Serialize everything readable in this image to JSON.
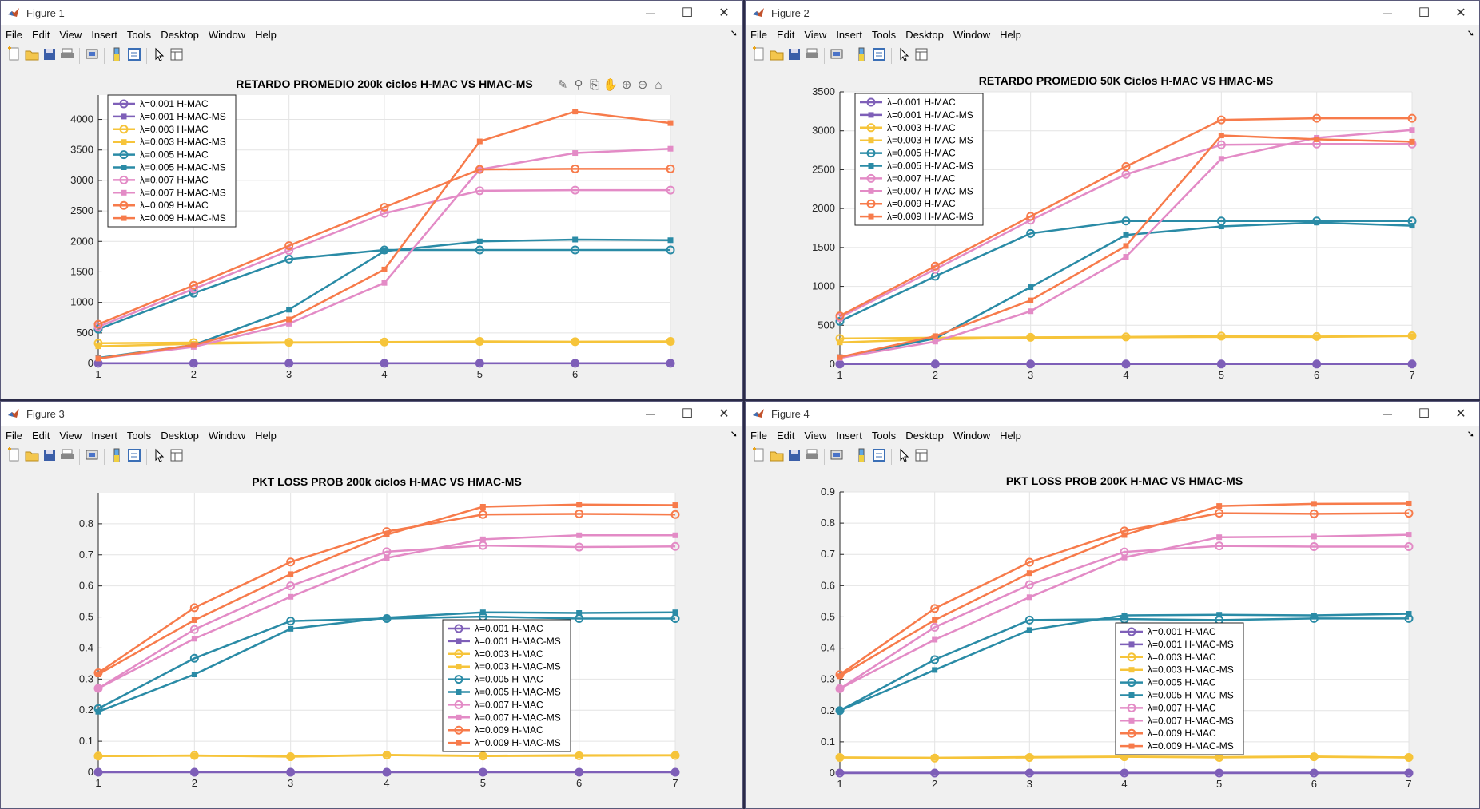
{
  "desktop": {
    "menu": [
      "File",
      "Edit",
      "View",
      "Insert",
      "Tools",
      "Desktop",
      "Window",
      "Help"
    ],
    "window_controls": [
      "minimize",
      "maximize",
      "close"
    ]
  },
  "colors": {
    "l001": "#7e5fb8",
    "l003": "#f6c43a",
    "l005": "#2a8ba6",
    "l007": "#e38bc6",
    "l009": "#f77b4b"
  },
  "windows": [
    {
      "title": "Figure 1",
      "chart_data": {
        "type": "line",
        "title": "RETARDO PROMEDIO 200k ciclos H-MAC  VS  HMAC-MS",
        "x": [
          1,
          2,
          3,
          4,
          5,
          6,
          7
        ],
        "xlim": [
          1,
          7
        ],
        "ylim": [
          0,
          4400
        ],
        "yticks": [
          0,
          500,
          1000,
          1500,
          2000,
          2500,
          3000,
          3500,
          4000
        ],
        "xticks": [
          1,
          2,
          3,
          4,
          5,
          6
        ],
        "grid": true,
        "legend_position": "top-left",
        "series": [
          {
            "name": "λ=0.001 H-MAC",
            "color": "l001",
            "marker": "o",
            "values": [
              2,
              2,
              2,
              2,
              2,
              2,
              2
            ]
          },
          {
            "name": "λ=0.001 H-MAC-MS",
            "color": "l001",
            "marker": "s",
            "values": [
              4,
              4,
              4,
              4,
              4,
              4,
              4
            ]
          },
          {
            "name": "λ=0.003 H-MAC",
            "color": "l003",
            "marker": "o",
            "values": [
              330,
              340,
              345,
              350,
              360,
              355,
              360
            ]
          },
          {
            "name": "λ=0.003 H-MAC-MS",
            "color": "l003",
            "marker": "s",
            "values": [
              280,
              320,
              340,
              345,
              350,
              350,
              355
            ]
          },
          {
            "name": "λ=0.005 H-MAC",
            "color": "l005",
            "marker": "o",
            "values": [
              560,
              1150,
              1710,
              1860,
              1860,
              1860,
              1860
            ]
          },
          {
            "name": "λ=0.005 H-MAC-MS",
            "color": "l005",
            "marker": "s",
            "values": [
              90,
              300,
              880,
              1840,
              2000,
              2030,
              2020
            ]
          },
          {
            "name": "λ=0.007 H-MAC",
            "color": "l007",
            "marker": "o",
            "values": [
              600,
              1220,
              1850,
              2460,
              2830,
              2840,
              2840
            ]
          },
          {
            "name": "λ=0.007 H-MAC-MS",
            "color": "l007",
            "marker": "s",
            "values": [
              80,
              270,
              650,
              1320,
              3180,
              3450,
              3520
            ]
          },
          {
            "name": "λ=0.009 H-MAC",
            "color": "l009",
            "marker": "o",
            "values": [
              640,
              1280,
              1930,
              2560,
              3180,
              3190,
              3190
            ]
          },
          {
            "name": "λ=0.009 H-MAC-MS",
            "color": "l009",
            "marker": "s",
            "values": [
              80,
              300,
              720,
              1540,
              3640,
              4130,
              3940
            ]
          }
        ]
      }
    },
    {
      "title": "Figure 2",
      "chart_data": {
        "type": "line",
        "title": "RETARDO PROMEDIO 50K Ciclos H-MAC  VS  HMAC-MS",
        "x": [
          1,
          2,
          3,
          4,
          5,
          6,
          7
        ],
        "xlim": [
          1,
          7
        ],
        "ylim": [
          0,
          3500
        ],
        "yticks": [
          0,
          500,
          1000,
          1500,
          2000,
          2500,
          3000,
          3500
        ],
        "xticks": [
          1,
          2,
          3,
          4,
          5,
          6,
          7
        ],
        "grid": true,
        "legend_position": "top-left",
        "series": [
          {
            "name": "λ=0.001 H-MAC",
            "color": "l001",
            "marker": "o",
            "values": [
              2,
              2,
              2,
              2,
              2,
              2,
              2
            ]
          },
          {
            "name": "λ=0.001 H-MAC-MS",
            "color": "l001",
            "marker": "s",
            "values": [
              4,
              4,
              4,
              4,
              4,
              4,
              4
            ]
          },
          {
            "name": "λ=0.003 H-MAC",
            "color": "l003",
            "marker": "o",
            "values": [
              330,
              340,
              345,
              350,
              360,
              355,
              365
            ]
          },
          {
            "name": "λ=0.003 H-MAC-MS",
            "color": "l003",
            "marker": "s",
            "values": [
              280,
              320,
              340,
              345,
              350,
              350,
              360
            ]
          },
          {
            "name": "λ=0.005 H-MAC",
            "color": "l005",
            "marker": "o",
            "values": [
              550,
              1130,
              1680,
              1840,
              1840,
              1840,
              1840
            ]
          },
          {
            "name": "λ=0.005 H-MAC-MS",
            "color": "l005",
            "marker": "s",
            "values": [
              90,
              330,
              990,
              1660,
              1770,
              1820,
              1780
            ]
          },
          {
            "name": "λ=0.007 H-MAC",
            "color": "l007",
            "marker": "o",
            "values": [
              600,
              1220,
              1850,
              2440,
              2820,
              2830,
              2830
            ]
          },
          {
            "name": "λ=0.007 H-MAC-MS",
            "color": "l007",
            "marker": "s",
            "values": [
              80,
              290,
              680,
              1380,
              2640,
              2910,
              3010
            ]
          },
          {
            "name": "λ=0.009 H-MAC",
            "color": "l009",
            "marker": "o",
            "values": [
              620,
              1260,
              1900,
              2540,
              3140,
              3160,
              3160
            ]
          },
          {
            "name": "λ=0.009 H-MAC-MS",
            "color": "l009",
            "marker": "s",
            "values": [
              90,
              360,
              820,
              1520,
              2940,
              2890,
              2860
            ]
          }
        ]
      }
    },
    {
      "title": "Figure 3",
      "chart_data": {
        "type": "line",
        "title": "PKT LOSS PROB 200k ciclos H-MAC  VS  HMAC-MS",
        "x": [
          1,
          2,
          3,
          4,
          5,
          6,
          7
        ],
        "xlim": [
          1,
          7
        ],
        "ylim": [
          0,
          0.9
        ],
        "yticks": [
          0,
          0.1,
          0.2,
          0.3,
          0.4,
          0.5,
          0.6,
          0.7,
          0.8
        ],
        "xticks": [
          1,
          2,
          3,
          4,
          5,
          6,
          7
        ],
        "grid": true,
        "legend_position": "center-right",
        "series": [
          {
            "name": "λ=0.001 H-MAC",
            "color": "l001",
            "marker": "o",
            "values": [
              0,
              0,
              0,
              0,
              0,
              0,
              0
            ]
          },
          {
            "name": "λ=0.001 H-MAC-MS",
            "color": "l001",
            "marker": "s",
            "values": [
              0.001,
              0.001,
              0.001,
              0.001,
              0.001,
              0.001,
              0.001
            ]
          },
          {
            "name": "λ=0.003 H-MAC",
            "color": "l003",
            "marker": "o",
            "values": [
              0.052,
              0.054,
              0.05,
              0.055,
              0.052,
              0.053,
              0.054
            ]
          },
          {
            "name": "λ=0.003 H-MAC-MS",
            "color": "l003",
            "marker": "s",
            "values": [
              0.052,
              0.053,
              0.051,
              0.056,
              0.053,
              0.055,
              0.055
            ]
          },
          {
            "name": "λ=0.005 H-MAC",
            "color": "l005",
            "marker": "o",
            "values": [
              0.205,
              0.367,
              0.487,
              0.495,
              0.501,
              0.495,
              0.495
            ]
          },
          {
            "name": "λ=0.005 H-MAC-MS",
            "color": "l005",
            "marker": "s",
            "values": [
              0.195,
              0.315,
              0.462,
              0.498,
              0.515,
              0.513,
              0.515
            ]
          },
          {
            "name": "λ=0.007 H-MAC",
            "color": "l007",
            "marker": "o",
            "values": [
              0.27,
              0.46,
              0.6,
              0.71,
              0.73,
              0.725,
              0.727
            ]
          },
          {
            "name": "λ=0.007 H-MAC-MS",
            "color": "l007",
            "marker": "s",
            "values": [
              0.27,
              0.43,
              0.565,
              0.69,
              0.75,
              0.763,
              0.763
            ]
          },
          {
            "name": "λ=0.009 H-MAC",
            "color": "l009",
            "marker": "o",
            "values": [
              0.32,
              0.53,
              0.677,
              0.775,
              0.83,
              0.832,
              0.83
            ]
          },
          {
            "name": "λ=0.009 H-MAC-MS",
            "color": "l009",
            "marker": "s",
            "values": [
              0.315,
              0.49,
              0.638,
              0.765,
              0.855,
              0.862,
              0.86
            ]
          }
        ]
      }
    },
    {
      "title": "Figure 4",
      "chart_data": {
        "type": "line",
        "title": "PKT LOSS PROB 200K H-MAC  VS  HMAC-MS",
        "x": [
          1,
          2,
          3,
          4,
          5,
          6,
          7
        ],
        "xlim": [
          1,
          7
        ],
        "ylim": [
          0,
          0.9
        ],
        "yticks": [
          0,
          0.1,
          0.2,
          0.3,
          0.4,
          0.5,
          0.6,
          0.7,
          0.8,
          0.9
        ],
        "xticks": [
          1,
          2,
          3,
          4,
          5,
          6,
          7
        ],
        "grid": true,
        "legend_position": "center-right",
        "series": [
          {
            "name": "λ=0.001 H-MAC",
            "color": "l001",
            "marker": "o",
            "values": [
              0,
              0,
              0,
              0,
              0,
              0,
              0
            ]
          },
          {
            "name": "λ=0.001 H-MAC-MS",
            "color": "l001",
            "marker": "s",
            "values": [
              0.001,
              0.001,
              0.001,
              0.001,
              0.001,
              0.001,
              0.001
            ]
          },
          {
            "name": "λ=0.003 H-MAC",
            "color": "l003",
            "marker": "o",
            "values": [
              0.05,
              0.048,
              0.05,
              0.052,
              0.05,
              0.052,
              0.05
            ]
          },
          {
            "name": "λ=0.003 H-MAC-MS",
            "color": "l003",
            "marker": "s",
            "values": [
              0.05,
              0.049,
              0.051,
              0.053,
              0.051,
              0.053,
              0.05
            ]
          },
          {
            "name": "λ=0.005 H-MAC",
            "color": "l005",
            "marker": "o",
            "values": [
              0.2,
              0.363,
              0.49,
              0.493,
              0.49,
              0.495,
              0.495
            ]
          },
          {
            "name": "λ=0.005 H-MAC-MS",
            "color": "l005",
            "marker": "s",
            "values": [
              0.2,
              0.33,
              0.458,
              0.505,
              0.507,
              0.505,
              0.51
            ]
          },
          {
            "name": "λ=0.007 H-MAC",
            "color": "l007",
            "marker": "o",
            "values": [
              0.27,
              0.467,
              0.603,
              0.708,
              0.727,
              0.725,
              0.725
            ]
          },
          {
            "name": "λ=0.007 H-MAC-MS",
            "color": "l007",
            "marker": "s",
            "values": [
              0.27,
              0.427,
              0.563,
              0.69,
              0.755,
              0.757,
              0.763
            ]
          },
          {
            "name": "λ=0.009 H-MAC",
            "color": "l009",
            "marker": "o",
            "values": [
              0.315,
              0.527,
              0.675,
              0.775,
              0.832,
              0.83,
              0.832
            ]
          },
          {
            "name": "λ=0.009 H-MAC-MS",
            "color": "l009",
            "marker": "s",
            "values": [
              0.31,
              0.49,
              0.64,
              0.762,
              0.855,
              0.862,
              0.863
            ]
          }
        ]
      }
    }
  ]
}
